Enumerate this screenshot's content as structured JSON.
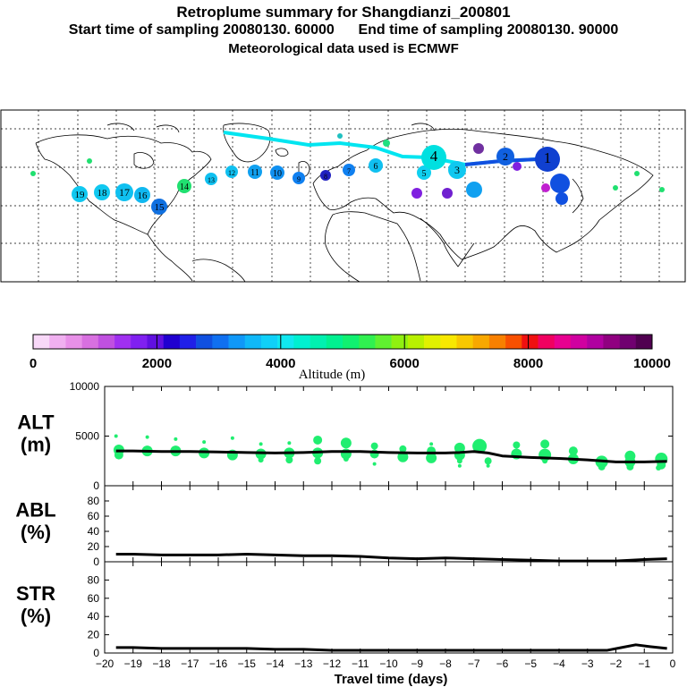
{
  "header": {
    "title": "Retroplume summary for Shangdianzi_200801",
    "subtitle_start": "Start time of sampling 20080130. 60000",
    "subtitle_end": "End time of sampling 20080130. 90000",
    "subtitle_met": "Meteorological data used is ECMWF"
  },
  "colors": {
    "plume_cyan": "#00e5f0",
    "plume_blue": "#1050e0",
    "plume_green": "#20ee70",
    "line": "#000000"
  },
  "chart_data": [
    {
      "type": "map",
      "name": "retroplume-map",
      "plume_day_labels": [
        "19",
        "18",
        "17",
        "16",
        "15",
        "14",
        "13",
        "12",
        "11",
        "10",
        "9",
        "8",
        "7",
        "6",
        "5",
        "4",
        "3",
        "2",
        "1"
      ]
    },
    {
      "type": "colorbar",
      "title": "Altitude (m)",
      "range": [
        0,
        10000
      ],
      "tick_labels": [
        "0",
        "2000",
        "4000",
        "6000",
        "8000",
        "10000"
      ],
      "colors": [
        "#f8d8f8",
        "#f0b0f0",
        "#e890e8",
        "#d870e0",
        "#c050e0",
        "#a030f0",
        "#8020f0",
        "#6010e0",
        "#2000d0",
        "#2020e8",
        "#1050e0",
        "#1070f0",
        "#1098f8",
        "#10b8f8",
        "#10d0f8",
        "#10e8f0",
        "#00f0d0",
        "#00f0b0",
        "#00f090",
        "#10f070",
        "#30f050",
        "#60f030",
        "#90f010",
        "#b8f000",
        "#e0f000",
        "#f8e800",
        "#f8c800",
        "#f8a800",
        "#f88000",
        "#f85000",
        "#f01010",
        "#f00060",
        "#e80090",
        "#d000a0",
        "#b000a0",
        "#900080",
        "#700070",
        "#500050"
      ]
    },
    {
      "type": "line",
      "name": "ALT",
      "label": "ALT",
      "unit": "(m)",
      "ylim": [
        0,
        10000
      ],
      "yticks": [
        "10000",
        "5000",
        "0"
      ],
      "ytick_values": [
        10000,
        5000,
        0
      ],
      "x": [
        -19.6,
        -19,
        -18,
        -17,
        -16,
        -15,
        -14,
        -13,
        -12,
        -11,
        -10,
        -9,
        -8,
        -7.5,
        -7,
        -6.5,
        -6,
        -5,
        -4,
        -3,
        -2,
        -1,
        -0.2
      ],
      "values": [
        3500,
        3500,
        3450,
        3450,
        3400,
        3350,
        3300,
        3350,
        3450,
        3450,
        3350,
        3300,
        3300,
        3350,
        3450,
        3300,
        3000,
        2850,
        2750,
        2600,
        2400,
        2400,
        2450
      ],
      "scatter": [
        {
          "x": -19.5,
          "y": 3600,
          "s": 6
        },
        {
          "x": -19.5,
          "y": 3100,
          "s": 5
        },
        {
          "x": -19.6,
          "y": 5000,
          "s": 2
        },
        {
          "x": -18.5,
          "y": 3500,
          "s": 6
        },
        {
          "x": -18.5,
          "y": 4900,
          "s": 2
        },
        {
          "x": -17.5,
          "y": 3500,
          "s": 6
        },
        {
          "x": -17.5,
          "y": 4700,
          "s": 2
        },
        {
          "x": -16.5,
          "y": 3300,
          "s": 6
        },
        {
          "x": -16.5,
          "y": 4400,
          "s": 2
        },
        {
          "x": -15.5,
          "y": 3100,
          "s": 6
        },
        {
          "x": -15.5,
          "y": 4800,
          "s": 2
        },
        {
          "x": -14.5,
          "y": 3200,
          "s": 6
        },
        {
          "x": -14.5,
          "y": 4200,
          "s": 2
        },
        {
          "x": -14.5,
          "y": 2600,
          "s": 3
        },
        {
          "x": -13.5,
          "y": 3300,
          "s": 6
        },
        {
          "x": -13.5,
          "y": 2600,
          "s": 4
        },
        {
          "x": -13.5,
          "y": 4300,
          "s": 2
        },
        {
          "x": -12.5,
          "y": 4600,
          "s": 5
        },
        {
          "x": -12.5,
          "y": 3300,
          "s": 6
        },
        {
          "x": -12.5,
          "y": 2500,
          "s": 4
        },
        {
          "x": -11.5,
          "y": 4300,
          "s": 6
        },
        {
          "x": -11.5,
          "y": 3200,
          "s": 6
        },
        {
          "x": -11.5,
          "y": 2700,
          "s": 3
        },
        {
          "x": -10.5,
          "y": 4000,
          "s": 4
        },
        {
          "x": -10.5,
          "y": 3200,
          "s": 5
        },
        {
          "x": -10.5,
          "y": 2200,
          "s": 2
        },
        {
          "x": -9.5,
          "y": 3700,
          "s": 4
        },
        {
          "x": -9.5,
          "y": 2900,
          "s": 6
        },
        {
          "x": -8.5,
          "y": 3500,
          "s": 5
        },
        {
          "x": -8.5,
          "y": 2800,
          "s": 6
        },
        {
          "x": -8.5,
          "y": 4200,
          "s": 2
        },
        {
          "x": -7.5,
          "y": 3800,
          "s": 6
        },
        {
          "x": -7.5,
          "y": 3100,
          "s": 6
        },
        {
          "x": -7.5,
          "y": 2500,
          "s": 3
        },
        {
          "x": -7.5,
          "y": 2000,
          "s": 2
        },
        {
          "x": -6.8,
          "y": 4000,
          "s": 8
        },
        {
          "x": -6.5,
          "y": 2500,
          "s": 4
        },
        {
          "x": -6.5,
          "y": 2000,
          "s": 2
        },
        {
          "x": -5.5,
          "y": 4100,
          "s": 4
        },
        {
          "x": -5.5,
          "y": 3200,
          "s": 6
        },
        {
          "x": -4.5,
          "y": 4200,
          "s": 5
        },
        {
          "x": -4.5,
          "y": 3100,
          "s": 7
        },
        {
          "x": -4.5,
          "y": 2500,
          "s": 3
        },
        {
          "x": -3.5,
          "y": 3500,
          "s": 5
        },
        {
          "x": -3.5,
          "y": 2700,
          "s": 6
        },
        {
          "x": -2.5,
          "y": 2400,
          "s": 7
        },
        {
          "x": -2.5,
          "y": 1900,
          "s": 4
        },
        {
          "x": -1.5,
          "y": 3000,
          "s": 6
        },
        {
          "x": -1.5,
          "y": 2400,
          "s": 6
        },
        {
          "x": -1.5,
          "y": 1900,
          "s": 4
        },
        {
          "x": -0.4,
          "y": 2700,
          "s": 7
        },
        {
          "x": -0.4,
          "y": 2100,
          "s": 5
        },
        {
          "x": -0.5,
          "y": 1800,
          "s": 3
        }
      ]
    },
    {
      "type": "line",
      "name": "ABL",
      "label": "ABL",
      "unit": "(%)",
      "ylim": [
        0,
        100
      ],
      "yticks": [
        "80",
        "60",
        "40",
        "20",
        "0"
      ],
      "ytick_values": [
        80,
        60,
        40,
        20,
        0
      ],
      "x": [
        -19.6,
        -19,
        -18,
        -17,
        -16,
        -15,
        -14,
        -13,
        -12,
        -11,
        -10,
        -9,
        -8,
        -7,
        -6,
        -5,
        -4,
        -3,
        -2,
        -1,
        -0.2
      ],
      "values": [
        10,
        10,
        9,
        9,
        9,
        10,
        9,
        8,
        8,
        7,
        5,
        4,
        5,
        4,
        3,
        2,
        1,
        1,
        1,
        3,
        4
      ]
    },
    {
      "type": "line",
      "name": "STR",
      "label": "STR",
      "unit": "(%)",
      "ylim": [
        0,
        100
      ],
      "yticks": [
        "80",
        "60",
        "40",
        "20",
        "0"
      ],
      "ytick_values": [
        80,
        60,
        40,
        20,
        0
      ],
      "x": [
        -19.6,
        -19,
        -18,
        -17,
        -16,
        -15,
        -14,
        -13,
        -12,
        -11,
        -10,
        -9,
        -8,
        -7,
        -6,
        -5,
        -4,
        -3,
        -2.3,
        -1.8,
        -1.3,
        -0.8,
        -0.2
      ],
      "values": [
        6,
        6,
        5,
        5,
        5,
        5,
        4,
        4,
        3,
        3,
        3,
        3,
        3,
        3,
        3,
        3,
        3,
        3,
        3,
        6,
        9,
        7,
        5
      ]
    }
  ],
  "xaxis": {
    "label": "Travel time (days)",
    "range": [
      -20,
      0
    ],
    "tick_values": [
      -20,
      -19,
      -18,
      -17,
      -16,
      -15,
      -14,
      -13,
      -12,
      -11,
      -10,
      -9,
      -8,
      -7,
      -6,
      -5,
      -4,
      -3,
      -2,
      -1,
      0
    ],
    "tick_labels": [
      "−20",
      "−19",
      "−18",
      "−17",
      "−16",
      "−15",
      "−14",
      "−13",
      "−12",
      "−11",
      "−10",
      "−9",
      "−8",
      "−7",
      "−6",
      "−5",
      "−4",
      "−3",
      "−2",
      "−1",
      "0"
    ]
  }
}
